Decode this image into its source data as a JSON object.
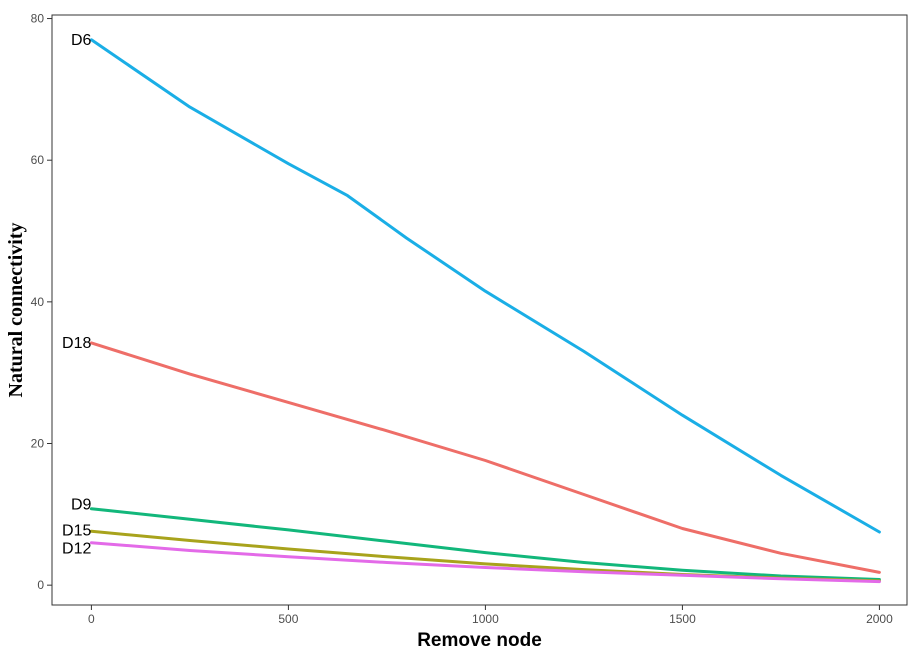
{
  "chart_data": {
    "type": "line",
    "title": "",
    "xlabel": "Remove node",
    "ylabel": "Natural connectivity",
    "xlim": [
      -100,
      2070
    ],
    "ylim": [
      -2.8,
      80.5
    ],
    "xticks": [
      0,
      500,
      1000,
      1500,
      2000
    ],
    "yticks": [
      0,
      20,
      40,
      60,
      80
    ],
    "grid": false,
    "legend": "direct-labels-left",
    "series": [
      {
        "name": "D6",
        "color": "#1aaee6",
        "x": [
          0,
          250,
          500,
          650,
          800,
          1000,
          1250,
          1500,
          1750,
          2000
        ],
        "y": [
          77,
          67.5,
          59.5,
          55,
          49,
          41.5,
          33,
          24,
          15.5,
          7.5
        ]
      },
      {
        "name": "D18",
        "color": "#ee6e68",
        "x": [
          0,
          250,
          500,
          750,
          1000,
          1250,
          1500,
          1750,
          2000
        ],
        "y": [
          34.2,
          29.8,
          25.8,
          21.8,
          17.6,
          12.8,
          8,
          4.5,
          1.8
        ]
      },
      {
        "name": "D9",
        "color": "#12b77b",
        "x": [
          0,
          250,
          500,
          750,
          1000,
          1250,
          1500,
          1750,
          2000
        ],
        "y": [
          10.8,
          9.3,
          7.8,
          6.2,
          4.6,
          3.2,
          2.1,
          1.3,
          0.8
        ]
      },
      {
        "name": "D15",
        "color": "#a8a31c",
        "x": [
          0,
          250,
          500,
          750,
          1000,
          1250,
          1500,
          1750,
          2000
        ],
        "y": [
          7.6,
          6.3,
          5.1,
          4,
          3,
          2.2,
          1.5,
          1,
          0.6
        ]
      },
      {
        "name": "D12",
        "color": "#e36ae8",
        "x": [
          0,
          250,
          500,
          750,
          1000,
          1250,
          1500,
          1750,
          2000
        ],
        "y": [
          6,
          4.9,
          4,
          3.2,
          2.5,
          1.9,
          1.4,
          0.9,
          0.5
        ]
      }
    ]
  }
}
